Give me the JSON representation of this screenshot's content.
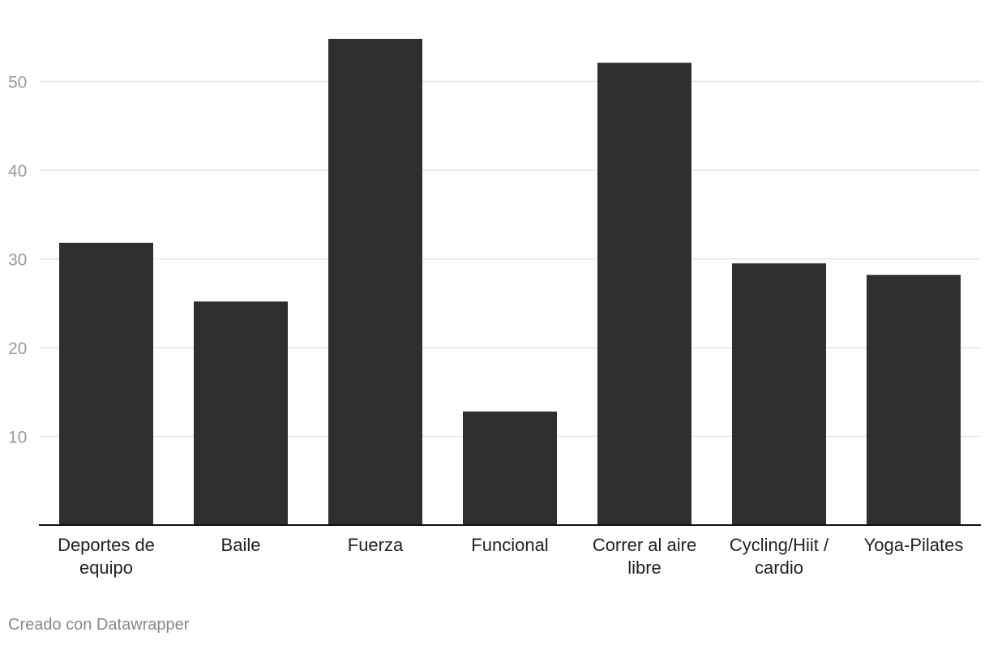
{
  "chart_data": {
    "type": "bar",
    "categories": [
      [
        "Deportes de",
        "equipo"
      ],
      [
        "Baile"
      ],
      [
        "Fuerza"
      ],
      [
        "Funcional"
      ],
      [
        "Correr al aire",
        "libre"
      ],
      [
        "Cycling/Hiit /",
        "cardio"
      ],
      [
        "Yoga-Pilates"
      ]
    ],
    "values": [
      31.8,
      25.2,
      54.8,
      12.8,
      52.1,
      29.5,
      28.2
    ],
    "yticks": [
      10,
      20,
      30,
      40,
      50
    ],
    "ylim": [
      0,
      59
    ],
    "grid": true,
    "bar_color": "#2f2f2f",
    "grid_color": "#e3e3e3",
    "axis_color": "#111111"
  },
  "credit": "Creado con Datawrapper"
}
